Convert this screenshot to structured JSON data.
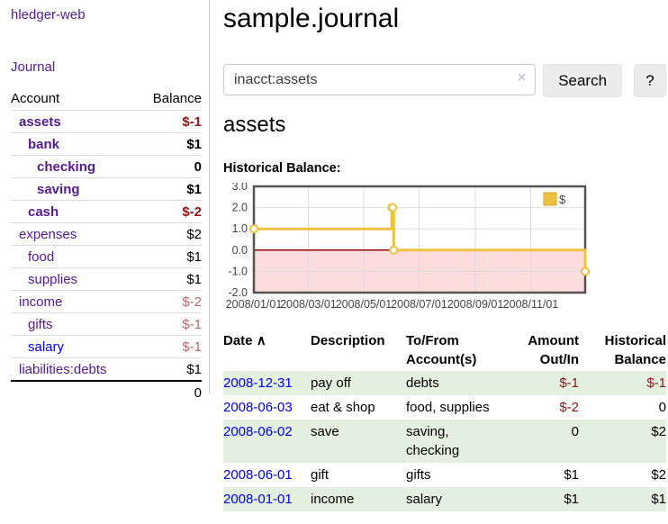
{
  "sidebar": {
    "brand": "hledger-web",
    "journal_link": "Journal",
    "accounts": {
      "headers": {
        "account": "Account",
        "balance": "Balance"
      },
      "rows": [
        {
          "name": "assets",
          "balance": "$-1",
          "depth": 1,
          "selected": true,
          "negative": true
        },
        {
          "name": "bank",
          "balance": "$1",
          "depth": 2,
          "selected": true,
          "negative": false
        },
        {
          "name": "checking",
          "balance": "0",
          "depth": 3,
          "selected": true,
          "negative": false
        },
        {
          "name": "saving",
          "balance": "$1",
          "depth": 3,
          "selected": true,
          "negative": false
        },
        {
          "name": "cash",
          "balance": "$-2",
          "depth": 2,
          "selected": true,
          "negative": true
        },
        {
          "name": "expenses",
          "balance": "$2",
          "depth": 1,
          "selected": false,
          "negative": false
        },
        {
          "name": "food",
          "balance": "$1",
          "depth": 2,
          "selected": false,
          "negative": false
        },
        {
          "name": "supplies",
          "balance": "$1",
          "depth": 2,
          "selected": false,
          "negative": false
        },
        {
          "name": "income",
          "balance": "$-2",
          "depth": 1,
          "selected": false,
          "negative": true
        },
        {
          "name": "gifts",
          "balance": "$-1",
          "depth": 2,
          "selected": false,
          "negative": true
        },
        {
          "name": "salary",
          "balance": "$-1",
          "depth": 2,
          "selected": false,
          "negative": true,
          "unvisited": true
        },
        {
          "name": "liabilities:debts",
          "balance": "$1",
          "depth": 1,
          "selected": false,
          "negative": false
        }
      ],
      "total": "0"
    }
  },
  "main": {
    "title": "sample.journal",
    "search": {
      "value": "inacct:assets",
      "clear_icon": "×",
      "button_label": "Search",
      "help_label": "?"
    },
    "account_heading": "assets",
    "chart_label": "Historical Balance:"
  },
  "chart_data": {
    "type": "line",
    "title": "Historical Balance",
    "series": [
      {
        "name": "$",
        "color": "#edc240",
        "step": true,
        "points": [
          {
            "x": "2008-01-01",
            "y": 1
          },
          {
            "x": "2008-06-01",
            "y": 2
          },
          {
            "x": "2008-06-02",
            "y": 2
          },
          {
            "x": "2008-06-03",
            "y": 0
          },
          {
            "x": "2008-12-31",
            "y": -1
          }
        ]
      }
    ],
    "x_ticks": [
      "2008/01/01",
      "2008/03/01",
      "2008/05/01",
      "2008/07/01",
      "2008/09/01",
      "2008/11/01"
    ],
    "y_ticks": [
      3.0,
      2.0,
      1.0,
      0.0,
      -1.0,
      -2.0
    ],
    "xlim": [
      "2008-01-01",
      "2008-12-31"
    ],
    "ylim": [
      -2,
      3
    ],
    "grid": true,
    "legend": {
      "label": "$",
      "position": "top-right"
    },
    "negative_region_color": "#fcdcdc",
    "zero_line_color": "#8b0000",
    "border_color": "#545454",
    "grid_color": "#dddddd"
  },
  "register": {
    "headers": {
      "date": "Date",
      "sort_indicator": "∧",
      "description": "Description",
      "accounts": "To/From Account(s)",
      "amount": "Amount Out/In",
      "balance": "Historical Balance"
    },
    "rows": [
      {
        "date": "2008-12-31",
        "description": "pay off",
        "accounts": "debts",
        "amount": "$-1",
        "balance": "$-1"
      },
      {
        "date": "2008-06-03",
        "description": "eat & shop",
        "accounts": "food, supplies",
        "amount": "$-2",
        "balance": "0"
      },
      {
        "date": "2008-06-02",
        "description": "save",
        "accounts": "saving, checking",
        "amount": "0",
        "balance": "$2"
      },
      {
        "date": "2008-06-01",
        "description": "gift",
        "accounts": "gifts",
        "amount": "$1",
        "balance": "$2"
      },
      {
        "date": "2008-01-01",
        "description": "income",
        "accounts": "salary",
        "amount": "$1",
        "balance": "$1"
      }
    ]
  },
  "colors": {
    "link_visited_purple": "#551a8b",
    "link_unvisited_blue": "#0000e0",
    "negative_strong": "#8b1717",
    "negative_faded": "#b26b6b",
    "row_stripe_green": "#e3f0e0",
    "button_gray": "#ececec",
    "series_gold": "#edc240"
  }
}
